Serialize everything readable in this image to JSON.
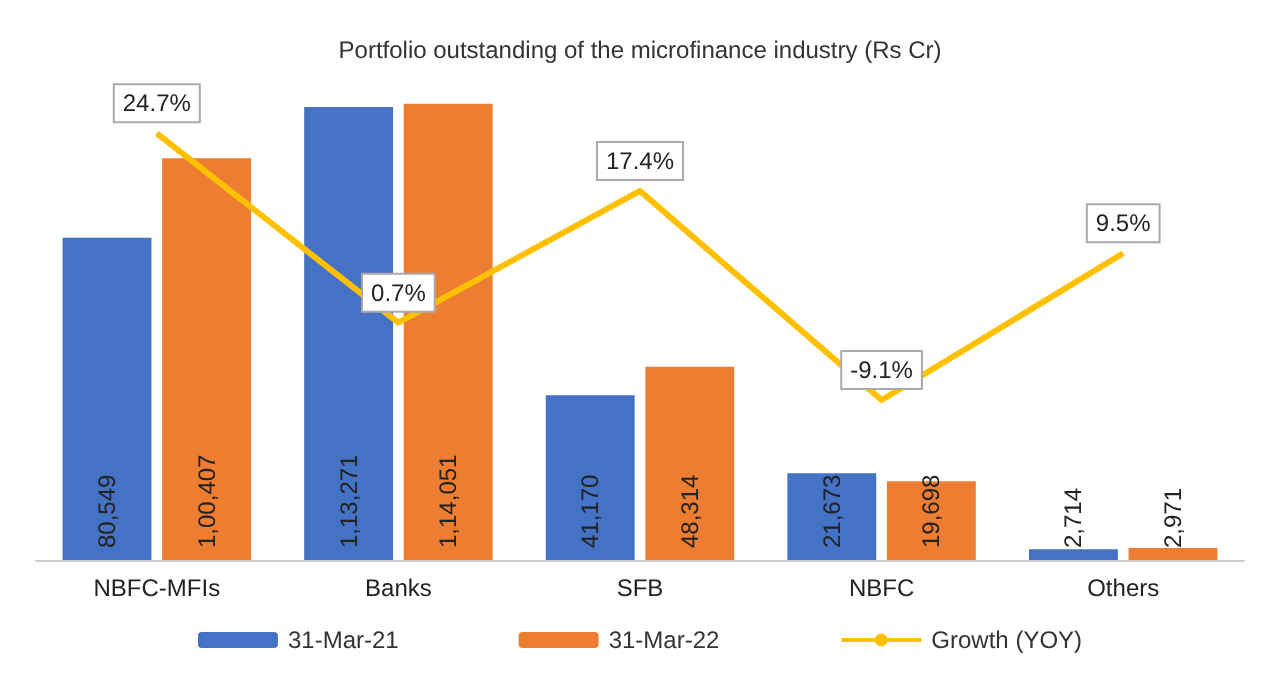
{
  "chart_data": {
    "type": "bar",
    "title": "Portfolio outstanding of the microfinance industry (Rs Cr)",
    "categories": [
      "NBFC-MFIs",
      "Banks",
      "SFB",
      "NBFC",
      "Others"
    ],
    "series": [
      {
        "name": "31-Mar-21",
        "color": "#4472c4",
        "values": [
          80549,
          113271,
          41170,
          21673,
          2714
        ],
        "value_labels": [
          "80,549",
          "1,13,271",
          "41,170",
          "21,673",
          "2,714"
        ]
      },
      {
        "name": "31-Mar-22",
        "color": "#ed7d31",
        "values": [
          100407,
          114051,
          48314,
          19698,
          2971
        ],
        "value_labels": [
          "1,00,407",
          "1,14,051",
          "48,314",
          "19,698",
          "2,971"
        ]
      },
      {
        "name": "Growth (YOY)",
        "type": "line",
        "axis": "y2",
        "color": "#ffc000",
        "values": [
          24.7,
          0.7,
          17.4,
          -9.1,
          9.5
        ],
        "value_labels": [
          "24.7%",
          "0.7%",
          "17.4%",
          "-9.1%",
          "9.5%"
        ]
      }
    ],
    "legend": "bottom",
    "grid": false,
    "marker": "none"
  }
}
